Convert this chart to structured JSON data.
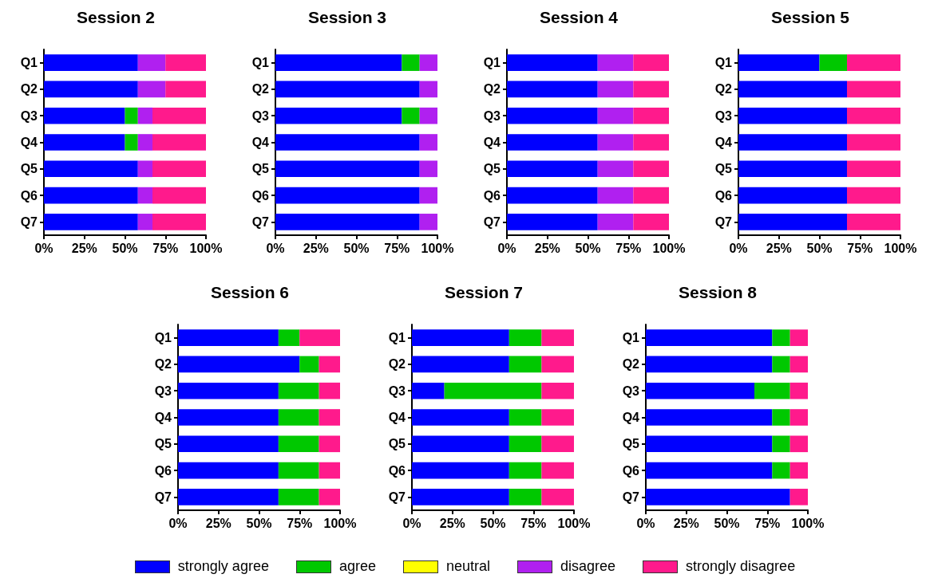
{
  "chart_data": [
    {
      "type": "bar",
      "title": "Session 2",
      "orientation": "horizontal",
      "stacked": true,
      "legend": "bottom",
      "categories": [
        "Q1",
        "Q2",
        "Q3",
        "Q4",
        "Q5",
        "Q6",
        "Q7"
      ],
      "xlim": [
        0,
        100
      ],
      "xticks": [
        {
          "value": 0,
          "label": "0%"
        },
        {
          "value": 25,
          "label": "25%"
        },
        {
          "value": 50,
          "label": "50%"
        },
        {
          "value": 75,
          "label": "75%"
        },
        {
          "value": 100,
          "label": "100%"
        }
      ],
      "series": [
        {
          "name": "strongly agree",
          "color": "#0000ff",
          "values": [
            58,
            58,
            50,
            50,
            58,
            58,
            58
          ]
        },
        {
          "name": "agree",
          "color": "#00c800",
          "values": [
            0,
            0,
            8,
            8,
            0,
            0,
            0
          ]
        },
        {
          "name": "neutral",
          "color": "#ffff00",
          "values": [
            0,
            0,
            0,
            0,
            0,
            0,
            0
          ]
        },
        {
          "name": "disagree",
          "color": "#b020f0",
          "values": [
            17,
            17,
            9,
            9,
            9,
            9,
            9
          ]
        },
        {
          "name": "strongly disagree",
          "color": "#ff1a8c",
          "values": [
            25,
            25,
            33,
            33,
            33,
            33,
            33
          ]
        }
      ]
    },
    {
      "type": "bar",
      "title": "Session 3",
      "orientation": "horizontal",
      "stacked": true,
      "categories": [
        "Q1",
        "Q2",
        "Q3",
        "Q4",
        "Q5",
        "Q6",
        "Q7"
      ],
      "xlim": [
        0,
        100
      ],
      "xticks": [
        {
          "value": 0,
          "label": "0%"
        },
        {
          "value": 25,
          "label": "25%"
        },
        {
          "value": 50,
          "label": "50%"
        },
        {
          "value": 75,
          "label": "75%"
        },
        {
          "value": 100,
          "label": "100%"
        }
      ],
      "series": [
        {
          "color": "#0000ff",
          "values": [
            78,
            89,
            78,
            89,
            89,
            89,
            89
          ]
        },
        {
          "color": "#00c800",
          "values": [
            11,
            0,
            11,
            0,
            0,
            0,
            0
          ]
        },
        {
          "color": "#ffff00",
          "values": [
            0,
            0,
            0,
            0,
            0,
            0,
            0
          ]
        },
        {
          "color": "#b020f0",
          "values": [
            11,
            11,
            11,
            11,
            11,
            11,
            11
          ]
        },
        {
          "color": "#ff1a8c",
          "values": [
            0,
            0,
            0,
            0,
            0,
            0,
            0
          ]
        }
      ]
    },
    {
      "type": "bar",
      "title": "Session 4",
      "orientation": "horizontal",
      "stacked": true,
      "categories": [
        "Q1",
        "Q2",
        "Q3",
        "Q4",
        "Q5",
        "Q6",
        "Q7"
      ],
      "xlim": [
        0,
        100
      ],
      "xticks": [
        {
          "value": 0,
          "label": "0%"
        },
        {
          "value": 25,
          "label": "25%"
        },
        {
          "value": 50,
          "label": "50%"
        },
        {
          "value": 75,
          "label": "75%"
        },
        {
          "value": 100,
          "label": "100%"
        }
      ],
      "series": [
        {
          "color": "#0000ff",
          "values": [
            56,
            56,
            56,
            56,
            56,
            56,
            56
          ]
        },
        {
          "color": "#00c800",
          "values": [
            0,
            0,
            0,
            0,
            0,
            0,
            0
          ]
        },
        {
          "color": "#ffff00",
          "values": [
            0,
            0,
            0,
            0,
            0,
            0,
            0
          ]
        },
        {
          "color": "#b020f0",
          "values": [
            22,
            22,
            22,
            22,
            22,
            22,
            22
          ]
        },
        {
          "color": "#ff1a8c",
          "values": [
            22,
            22,
            22,
            22,
            22,
            22,
            22
          ]
        }
      ]
    },
    {
      "type": "bar",
      "title": "Session 5",
      "orientation": "horizontal",
      "stacked": true,
      "categories": [
        "Q1",
        "Q2",
        "Q3",
        "Q4",
        "Q5",
        "Q6",
        "Q7"
      ],
      "xlim": [
        0,
        100
      ],
      "xticks": [
        {
          "value": 0,
          "label": "0%"
        },
        {
          "value": 25,
          "label": "25%"
        },
        {
          "value": 50,
          "label": "50%"
        },
        {
          "value": 75,
          "label": "75%"
        },
        {
          "value": 100,
          "label": "100%"
        }
      ],
      "series": [
        {
          "color": "#0000ff",
          "values": [
            50,
            67,
            67,
            67,
            67,
            67,
            67
          ]
        },
        {
          "color": "#00c800",
          "values": [
            17,
            0,
            0,
            0,
            0,
            0,
            0
          ]
        },
        {
          "color": "#ffff00",
          "values": [
            0,
            0,
            0,
            0,
            0,
            0,
            0
          ]
        },
        {
          "color": "#b020f0",
          "values": [
            0,
            0,
            0,
            0,
            0,
            0,
            0
          ]
        },
        {
          "color": "#ff1a8c",
          "values": [
            33,
            33,
            33,
            33,
            33,
            33,
            33
          ]
        }
      ]
    },
    {
      "type": "bar",
      "title": "Session 6",
      "orientation": "horizontal",
      "stacked": true,
      "categories": [
        "Q1",
        "Q2",
        "Q3",
        "Q4",
        "Q5",
        "Q6",
        "Q7"
      ],
      "xlim": [
        0,
        100
      ],
      "xticks": [
        {
          "value": 0,
          "label": "0%"
        },
        {
          "value": 25,
          "label": "25%"
        },
        {
          "value": 50,
          "label": "50%"
        },
        {
          "value": 75,
          "label": "75%"
        },
        {
          "value": 100,
          "label": "100%"
        }
      ],
      "series": [
        {
          "color": "#0000ff",
          "values": [
            62,
            75,
            62,
            62,
            62,
            62,
            62
          ]
        },
        {
          "color": "#00c800",
          "values": [
            13,
            12,
            25,
            25,
            25,
            25,
            25
          ]
        },
        {
          "color": "#ffff00",
          "values": [
            0,
            0,
            0,
            0,
            0,
            0,
            0
          ]
        },
        {
          "color": "#b020f0",
          "values": [
            0,
            0,
            0,
            0,
            0,
            0,
            0
          ]
        },
        {
          "color": "#ff1a8c",
          "values": [
            25,
            13,
            13,
            13,
            13,
            13,
            13
          ]
        }
      ]
    },
    {
      "type": "bar",
      "title": "Session 7",
      "orientation": "horizontal",
      "stacked": true,
      "categories": [
        "Q1",
        "Q2",
        "Q3",
        "Q4",
        "Q5",
        "Q6",
        "Q7"
      ],
      "xlim": [
        0,
        100
      ],
      "xticks": [
        {
          "value": 0,
          "label": "0%"
        },
        {
          "value": 25,
          "label": "25%"
        },
        {
          "value": 50,
          "label": "50%"
        },
        {
          "value": 75,
          "label": "75%"
        },
        {
          "value": 100,
          "label": "100%"
        }
      ],
      "series": [
        {
          "color": "#0000ff",
          "values": [
            60,
            60,
            20,
            60,
            60,
            60,
            60
          ]
        },
        {
          "color": "#00c800",
          "values": [
            20,
            20,
            60,
            20,
            20,
            20,
            20
          ]
        },
        {
          "color": "#ffff00",
          "values": [
            0,
            0,
            0,
            0,
            0,
            0,
            0
          ]
        },
        {
          "color": "#b020f0",
          "values": [
            0,
            0,
            0,
            0,
            0,
            0,
            0
          ]
        },
        {
          "color": "#ff1a8c",
          "values": [
            20,
            20,
            20,
            20,
            20,
            20,
            20
          ]
        }
      ]
    },
    {
      "type": "bar",
      "title": "Session 8",
      "orientation": "horizontal",
      "stacked": true,
      "categories": [
        "Q1",
        "Q2",
        "Q3",
        "Q4",
        "Q5",
        "Q6",
        "Q7"
      ],
      "xlim": [
        0,
        100
      ],
      "xticks": [
        {
          "value": 0,
          "label": "0%"
        },
        {
          "value": 25,
          "label": "25%"
        },
        {
          "value": 50,
          "label": "50%"
        },
        {
          "value": 75,
          "label": "75%"
        },
        {
          "value": 100,
          "label": "100%"
        }
      ],
      "series": [
        {
          "color": "#0000ff",
          "values": [
            78,
            78,
            67,
            78,
            78,
            78,
            89
          ]
        },
        {
          "color": "#00c800",
          "values": [
            11,
            11,
            22,
            11,
            11,
            11,
            0
          ]
        },
        {
          "color": "#ffff00",
          "values": [
            0,
            0,
            0,
            0,
            0,
            0,
            0
          ]
        },
        {
          "color": "#b020f0",
          "values": [
            0,
            0,
            0,
            0,
            0,
            0,
            0
          ]
        },
        {
          "color": "#ff1a8c",
          "values": [
            11,
            11,
            11,
            11,
            11,
            11,
            11
          ]
        }
      ]
    }
  ]
}
